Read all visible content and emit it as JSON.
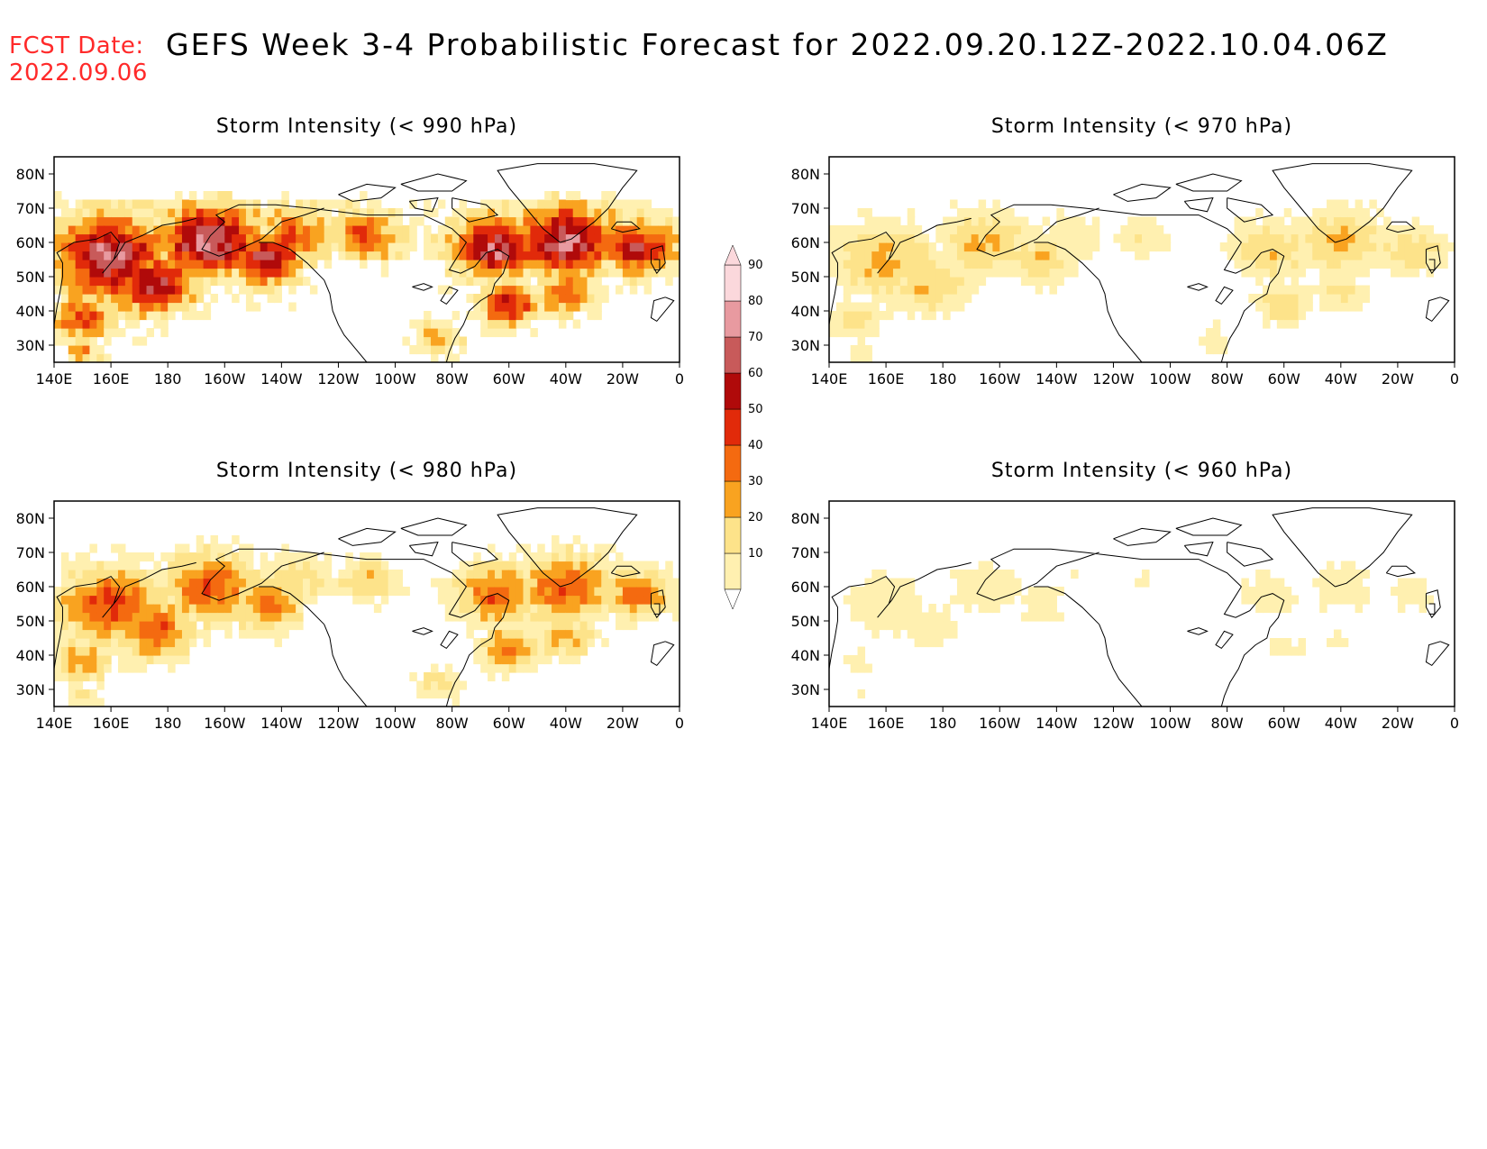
{
  "header": {
    "fcst_label": "FCST Date:",
    "fcst_date": "2022.09.06",
    "title": "GEFS Week 3-4 Probabilistic Forecast for 2022.09.20.12Z-2022.10.04.06Z"
  },
  "panels": [
    {
      "title": "Storm Intensity (< 990 hPa)",
      "threshold_hpa": 990,
      "intensity": "high"
    },
    {
      "title": "Storm Intensity (< 970 hPa)",
      "threshold_hpa": 970,
      "intensity": "low"
    },
    {
      "title": "Storm Intensity (< 980 hPa)",
      "threshold_hpa": 980,
      "intensity": "medium"
    },
    {
      "title": "Storm Intensity (< 960 hPa)",
      "threshold_hpa": 960,
      "intensity": "minimal"
    }
  ],
  "axes": {
    "lon_labels": [
      "140E",
      "160E",
      "180",
      "160W",
      "140W",
      "120W",
      "100W",
      "80W",
      "60W",
      "40W",
      "20W",
      "0"
    ],
    "lat_labels": [
      "80N",
      "70N",
      "60N",
      "50N",
      "40N",
      "30N"
    ],
    "lon_range": [
      140,
      360
    ],
    "lat_range": [
      25,
      85
    ]
  },
  "colorbar": {
    "levels": [
      "10",
      "20",
      "30",
      "40",
      "50",
      "60",
      "70",
      "80",
      "90"
    ],
    "colors": [
      "#fff0b0",
      "#fde38a",
      "#f9a320",
      "#f46a10",
      "#e12a0a",
      "#b00a0a",
      "#c85a5a",
      "#e89aa0",
      "#fbd8dc"
    ]
  }
}
